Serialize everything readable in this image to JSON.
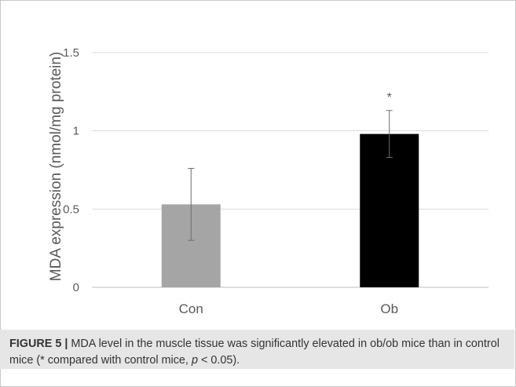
{
  "chart_data": {
    "type": "bar",
    "categories": [
      "Con",
      "Ob"
    ],
    "values": [
      0.53,
      0.98
    ],
    "error": [
      0.23,
      0.15
    ],
    "annotations": [
      "",
      "*"
    ],
    "colors": [
      "#a5a5a5",
      "#000000"
    ],
    "title": "",
    "xlabel": "",
    "ylabel": "MDA expression (nmol/mg protein)",
    "ylim": [
      0,
      1.5
    ],
    "yticks": [
      "0",
      "0.5",
      "1",
      "1.5"
    ],
    "grid": true
  },
  "caption": {
    "label": "FIGURE 5 |",
    "text": " MDA level in the muscle tissue was significantly elevated in ob/ob mice than in control mice (* compared with control mice, ",
    "p_symbol": "p",
    "p_value": " < 0.05)."
  }
}
